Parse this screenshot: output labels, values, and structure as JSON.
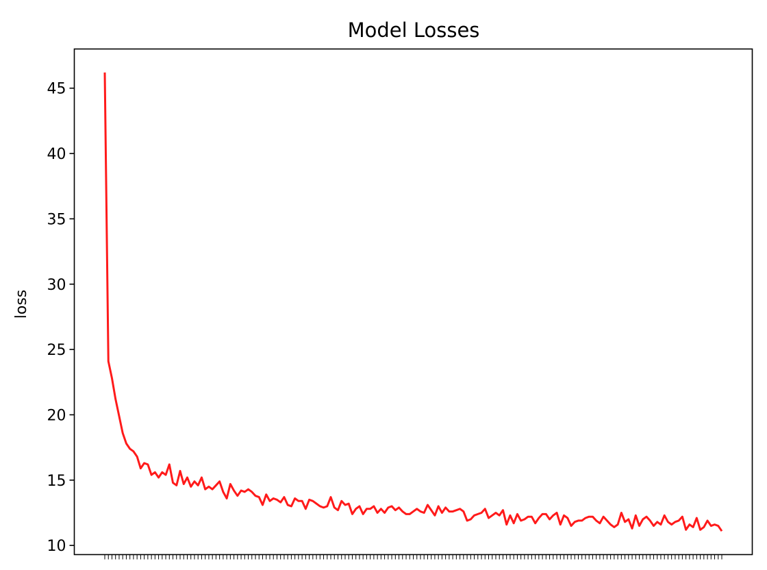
{
  "chart_data": {
    "type": "line",
    "title": "Model Losses",
    "xlabel": "",
    "ylabel": "loss",
    "ylim": [
      9.3,
      48.0
    ],
    "yticks": [
      10,
      15,
      20,
      25,
      30,
      35,
      40,
      45
    ],
    "grid": false,
    "legend": "none",
    "series": [
      {
        "name": "",
        "color": "#ff1a1a",
        "values": [
          46.2,
          24.1,
          22.8,
          21.2,
          19.9,
          18.6,
          17.8,
          17.4,
          17.2,
          16.8,
          15.9,
          16.3,
          16.2,
          15.4,
          15.6,
          15.2,
          15.6,
          15.4,
          16.2,
          14.8,
          14.6,
          15.7,
          14.7,
          15.2,
          14.5,
          14.9,
          14.6,
          15.2,
          14.3,
          14.5,
          14.3,
          14.6,
          14.9,
          14.1,
          13.6,
          14.7,
          14.2,
          13.8,
          14.2,
          14.1,
          14.3,
          14.1,
          13.8,
          13.7,
          13.1,
          13.9,
          13.4,
          13.6,
          13.5,
          13.3,
          13.7,
          13.1,
          13.0,
          13.6,
          13.4,
          13.4,
          12.8,
          13.5,
          13.4,
          13.2,
          13.0,
          12.9,
          13.0,
          13.7,
          12.9,
          12.7,
          13.4,
          13.1,
          13.2,
          12.4,
          12.8,
          13.0,
          12.4,
          12.8,
          12.8,
          13.0,
          12.5,
          12.8,
          12.5,
          12.9,
          13.0,
          12.7,
          12.9,
          12.6,
          12.4,
          12.4,
          12.6,
          12.8,
          12.6,
          12.5,
          13.1,
          12.7,
          12.3,
          13.0,
          12.5,
          12.9,
          12.6,
          12.6,
          12.7,
          12.8,
          12.6,
          11.9,
          12.0,
          12.3,
          12.4,
          12.5,
          12.8,
          12.1,
          12.3,
          12.5,
          12.3,
          12.7,
          11.6,
          12.3,
          11.7,
          12.4,
          11.9,
          12.0,
          12.2,
          12.2,
          11.7,
          12.1,
          12.4,
          12.4,
          12.0,
          12.3,
          12.5,
          11.6,
          12.3,
          12.1,
          11.5,
          11.8,
          11.9,
          11.9,
          12.1,
          12.2,
          12.2,
          11.9,
          11.7,
          12.2,
          11.9,
          11.6,
          11.4,
          11.6,
          12.5,
          11.8,
          12.0,
          11.3,
          12.3,
          11.5,
          12.0,
          12.2,
          11.9,
          11.5,
          11.8,
          11.6,
          12.3,
          11.8,
          11.6,
          11.8,
          11.9,
          12.2,
          11.2,
          11.6,
          11.4,
          12.1,
          11.2,
          11.4,
          11.9,
          11.5,
          11.6,
          11.5,
          11.1
        ]
      }
    ]
  }
}
